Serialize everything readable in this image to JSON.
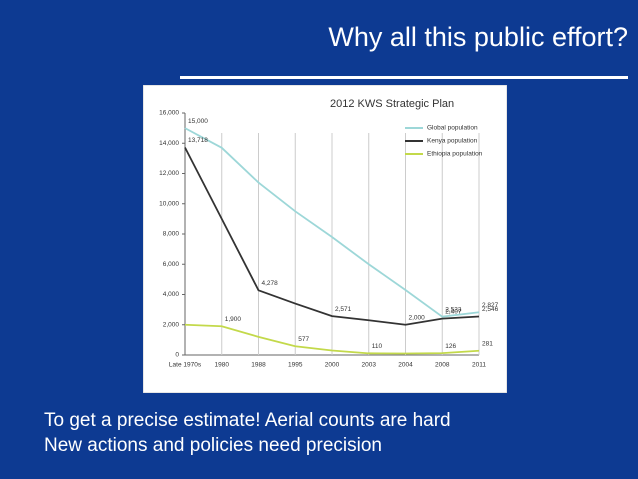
{
  "title": "Why all this public effort?",
  "body": [
    "To get a precise estimate!   Aerial counts are hard",
    "New actions and policies need precision"
  ],
  "chart_data": {
    "type": "line",
    "source": "2012 KWS Strategic Plan",
    "categories": [
      "Late 1970s",
      "1980",
      "1988",
      "1995",
      "2000",
      "2003",
      "2004",
      "2008",
      "2011"
    ],
    "series": [
      {
        "name": "Global population",
        "color": "#9dd7d8",
        "values": [
          15000,
          13700,
          11400,
          9500,
          7800,
          6000,
          4300,
          2533,
          2827
        ],
        "value_labels": [
          "15,000",
          null,
          null,
          null,
          null,
          null,
          null,
          "2,533",
          "2,827"
        ]
      },
      {
        "name": "Kenya population",
        "color": "#333333",
        "values": [
          13718,
          9000,
          4278,
          3400,
          2571,
          2300,
          2000,
          2407,
          2546
        ],
        "value_labels": [
          "13,718",
          null,
          "4,278",
          null,
          "2,571",
          null,
          "2,000",
          "2,407",
          "2,546"
        ]
      },
      {
        "name": "Ethiopia population",
        "color": "#c3d94a",
        "values": [
          2000,
          1900,
          1200,
          577,
          300,
          110,
          100,
          126,
          281
        ],
        "value_labels": [
          null,
          "1,900",
          null,
          "577",
          null,
          "110",
          null,
          "126",
          "281"
        ]
      }
    ],
    "ylim": [
      0,
      16000
    ],
    "yticks": [
      0,
      {
        "value": 2000,
        "label": "2,000"
      },
      {
        "value": 4000,
        "label": "4,000"
      },
      {
        "value": 6000,
        "label": "6,000"
      },
      {
        "value": 8000,
        "label": "8,000"
      },
      {
        "value": 10000,
        "label": "10,000"
      },
      {
        "value": 12000,
        "label": "12,000"
      },
      {
        "value": 14000,
        "label": "14,000"
      },
      {
        "value": 16000,
        "label": "16,000"
      }
    ],
    "grid": true,
    "legend": "top-right"
  }
}
